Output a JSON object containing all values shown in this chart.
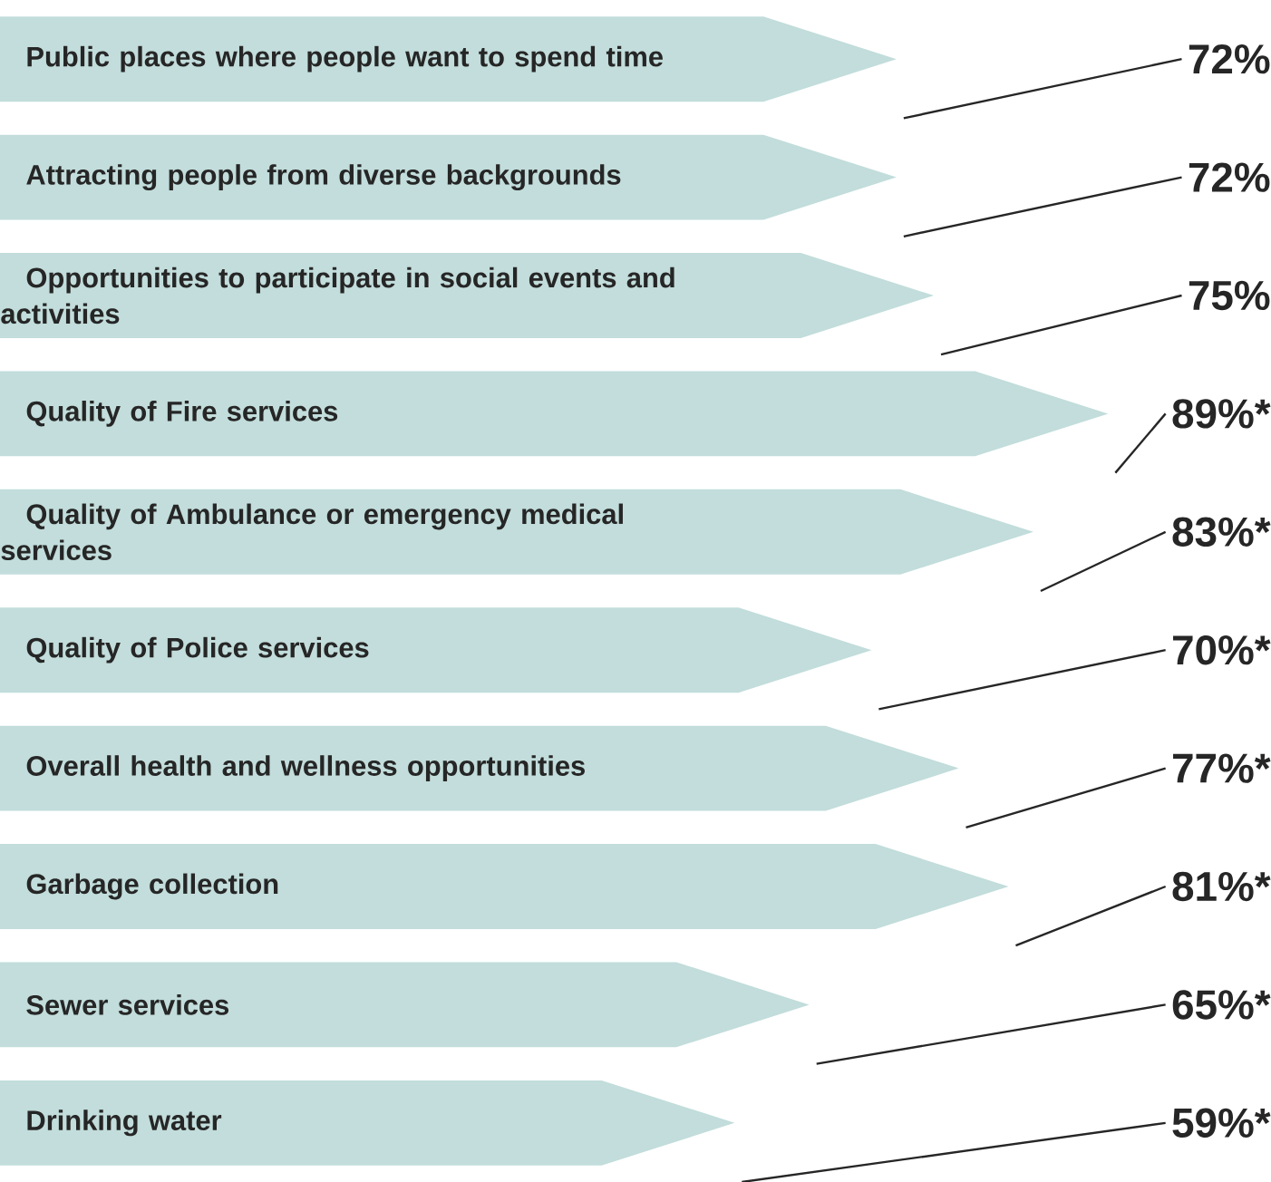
{
  "chart_data": {
    "type": "bar",
    "orientation": "horizontal",
    "categories": [
      "Public places where people want to spend time",
      "Attracting people from diverse backgrounds",
      "Opportunities to participate in social events and activities",
      "Quality of Fire services",
      "Quality of Ambulance or emergency medical services",
      "Quality of Police services",
      "Overall health and wellness opportunities",
      "Garbage collection",
      "Sewer services",
      "Drinking water"
    ],
    "values": [
      72,
      72,
      75,
      89,
      83,
      70,
      77,
      81,
      65,
      59
    ],
    "value_labels": [
      "72%",
      "72%",
      "75%",
      "89%*",
      "83%*",
      "70%*",
      "77%*",
      "81%*",
      "65%*",
      "59%*"
    ],
    "color": "#c2dddb"
  }
}
